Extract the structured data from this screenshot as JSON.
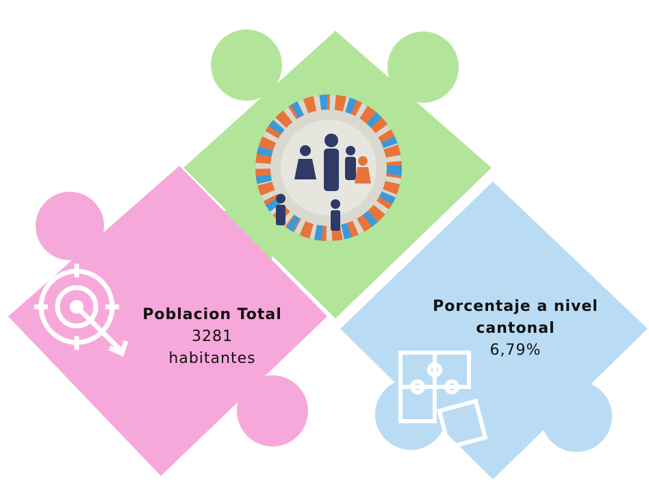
{
  "left_piece": {
    "title": "Poblacion Total",
    "value": "3281",
    "unit": "habitantes"
  },
  "right_piece": {
    "title": "Porcentaje a nivel cantonal",
    "value": "6,79%"
  }
}
